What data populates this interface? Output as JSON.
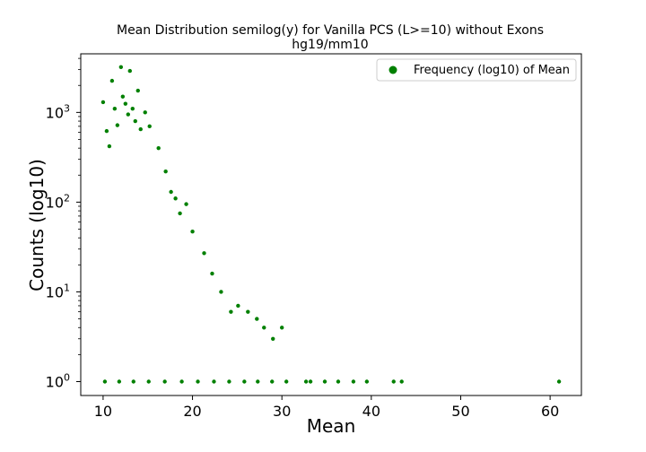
{
  "chart_data": {
    "type": "scatter",
    "title": "Mean Distribution semilog(y) for Vanilla PCS (L>=10) without Exons",
    "subtitle": "hg19/mm10",
    "xlabel": "Mean",
    "ylabel": "Counts (log10)",
    "xlim": [
      7.5,
      63.5
    ],
    "ylim": [
      0.7,
      4500
    ],
    "yscale": "log",
    "grid": false,
    "legend_position": "top-right",
    "x_ticks": [
      10,
      20,
      30,
      40,
      50,
      60
    ],
    "x_tick_labels": [
      "10",
      "20",
      "30",
      "40",
      "50",
      "60"
    ],
    "y_ticks": [
      1,
      10,
      100,
      1000
    ],
    "y_tick_labels": [
      "10^0",
      "10^1",
      "10^2",
      "10^3"
    ],
    "series": [
      {
        "name": "Frequency (log10) of Mean",
        "color": "#008000",
        "points": [
          [
            10.0,
            1300
          ],
          [
            10.4,
            620
          ],
          [
            10.7,
            420
          ],
          [
            11.0,
            2250
          ],
          [
            11.3,
            1100
          ],
          [
            11.6,
            720
          ],
          [
            12.0,
            3200
          ],
          [
            12.2,
            1500
          ],
          [
            12.5,
            1250
          ],
          [
            12.8,
            950
          ],
          [
            13.0,
            2900
          ],
          [
            13.3,
            1100
          ],
          [
            13.6,
            800
          ],
          [
            13.9,
            1750
          ],
          [
            14.2,
            650
          ],
          [
            14.7,
            1000
          ],
          [
            15.2,
            700
          ],
          [
            16.2,
            400
          ],
          [
            17.0,
            220
          ],
          [
            17.6,
            130
          ],
          [
            18.1,
            110
          ],
          [
            18.6,
            75
          ],
          [
            19.3,
            95
          ],
          [
            20.0,
            47
          ],
          [
            21.3,
            27
          ],
          [
            22.2,
            16
          ],
          [
            23.2,
            10
          ],
          [
            24.3,
            6
          ],
          [
            25.1,
            7
          ],
          [
            26.2,
            6
          ],
          [
            27.2,
            5
          ],
          [
            28.0,
            4
          ],
          [
            29.0,
            3
          ],
          [
            30.0,
            4
          ],
          [
            10.2,
            1
          ],
          [
            11.8,
            1
          ],
          [
            13.4,
            1
          ],
          [
            15.1,
            1
          ],
          [
            16.9,
            1
          ],
          [
            18.8,
            1
          ],
          [
            20.6,
            1
          ],
          [
            22.4,
            1
          ],
          [
            24.1,
            1
          ],
          [
            25.8,
            1
          ],
          [
            27.3,
            1
          ],
          [
            28.9,
            1
          ],
          [
            30.5,
            1
          ],
          [
            32.7,
            1
          ],
          [
            33.2,
            1
          ],
          [
            34.8,
            1
          ],
          [
            36.3,
            1
          ],
          [
            38.0,
            1
          ],
          [
            39.5,
            1
          ],
          [
            42.5,
            1
          ],
          [
            43.4,
            1
          ],
          [
            61.0,
            1
          ]
        ]
      }
    ]
  }
}
